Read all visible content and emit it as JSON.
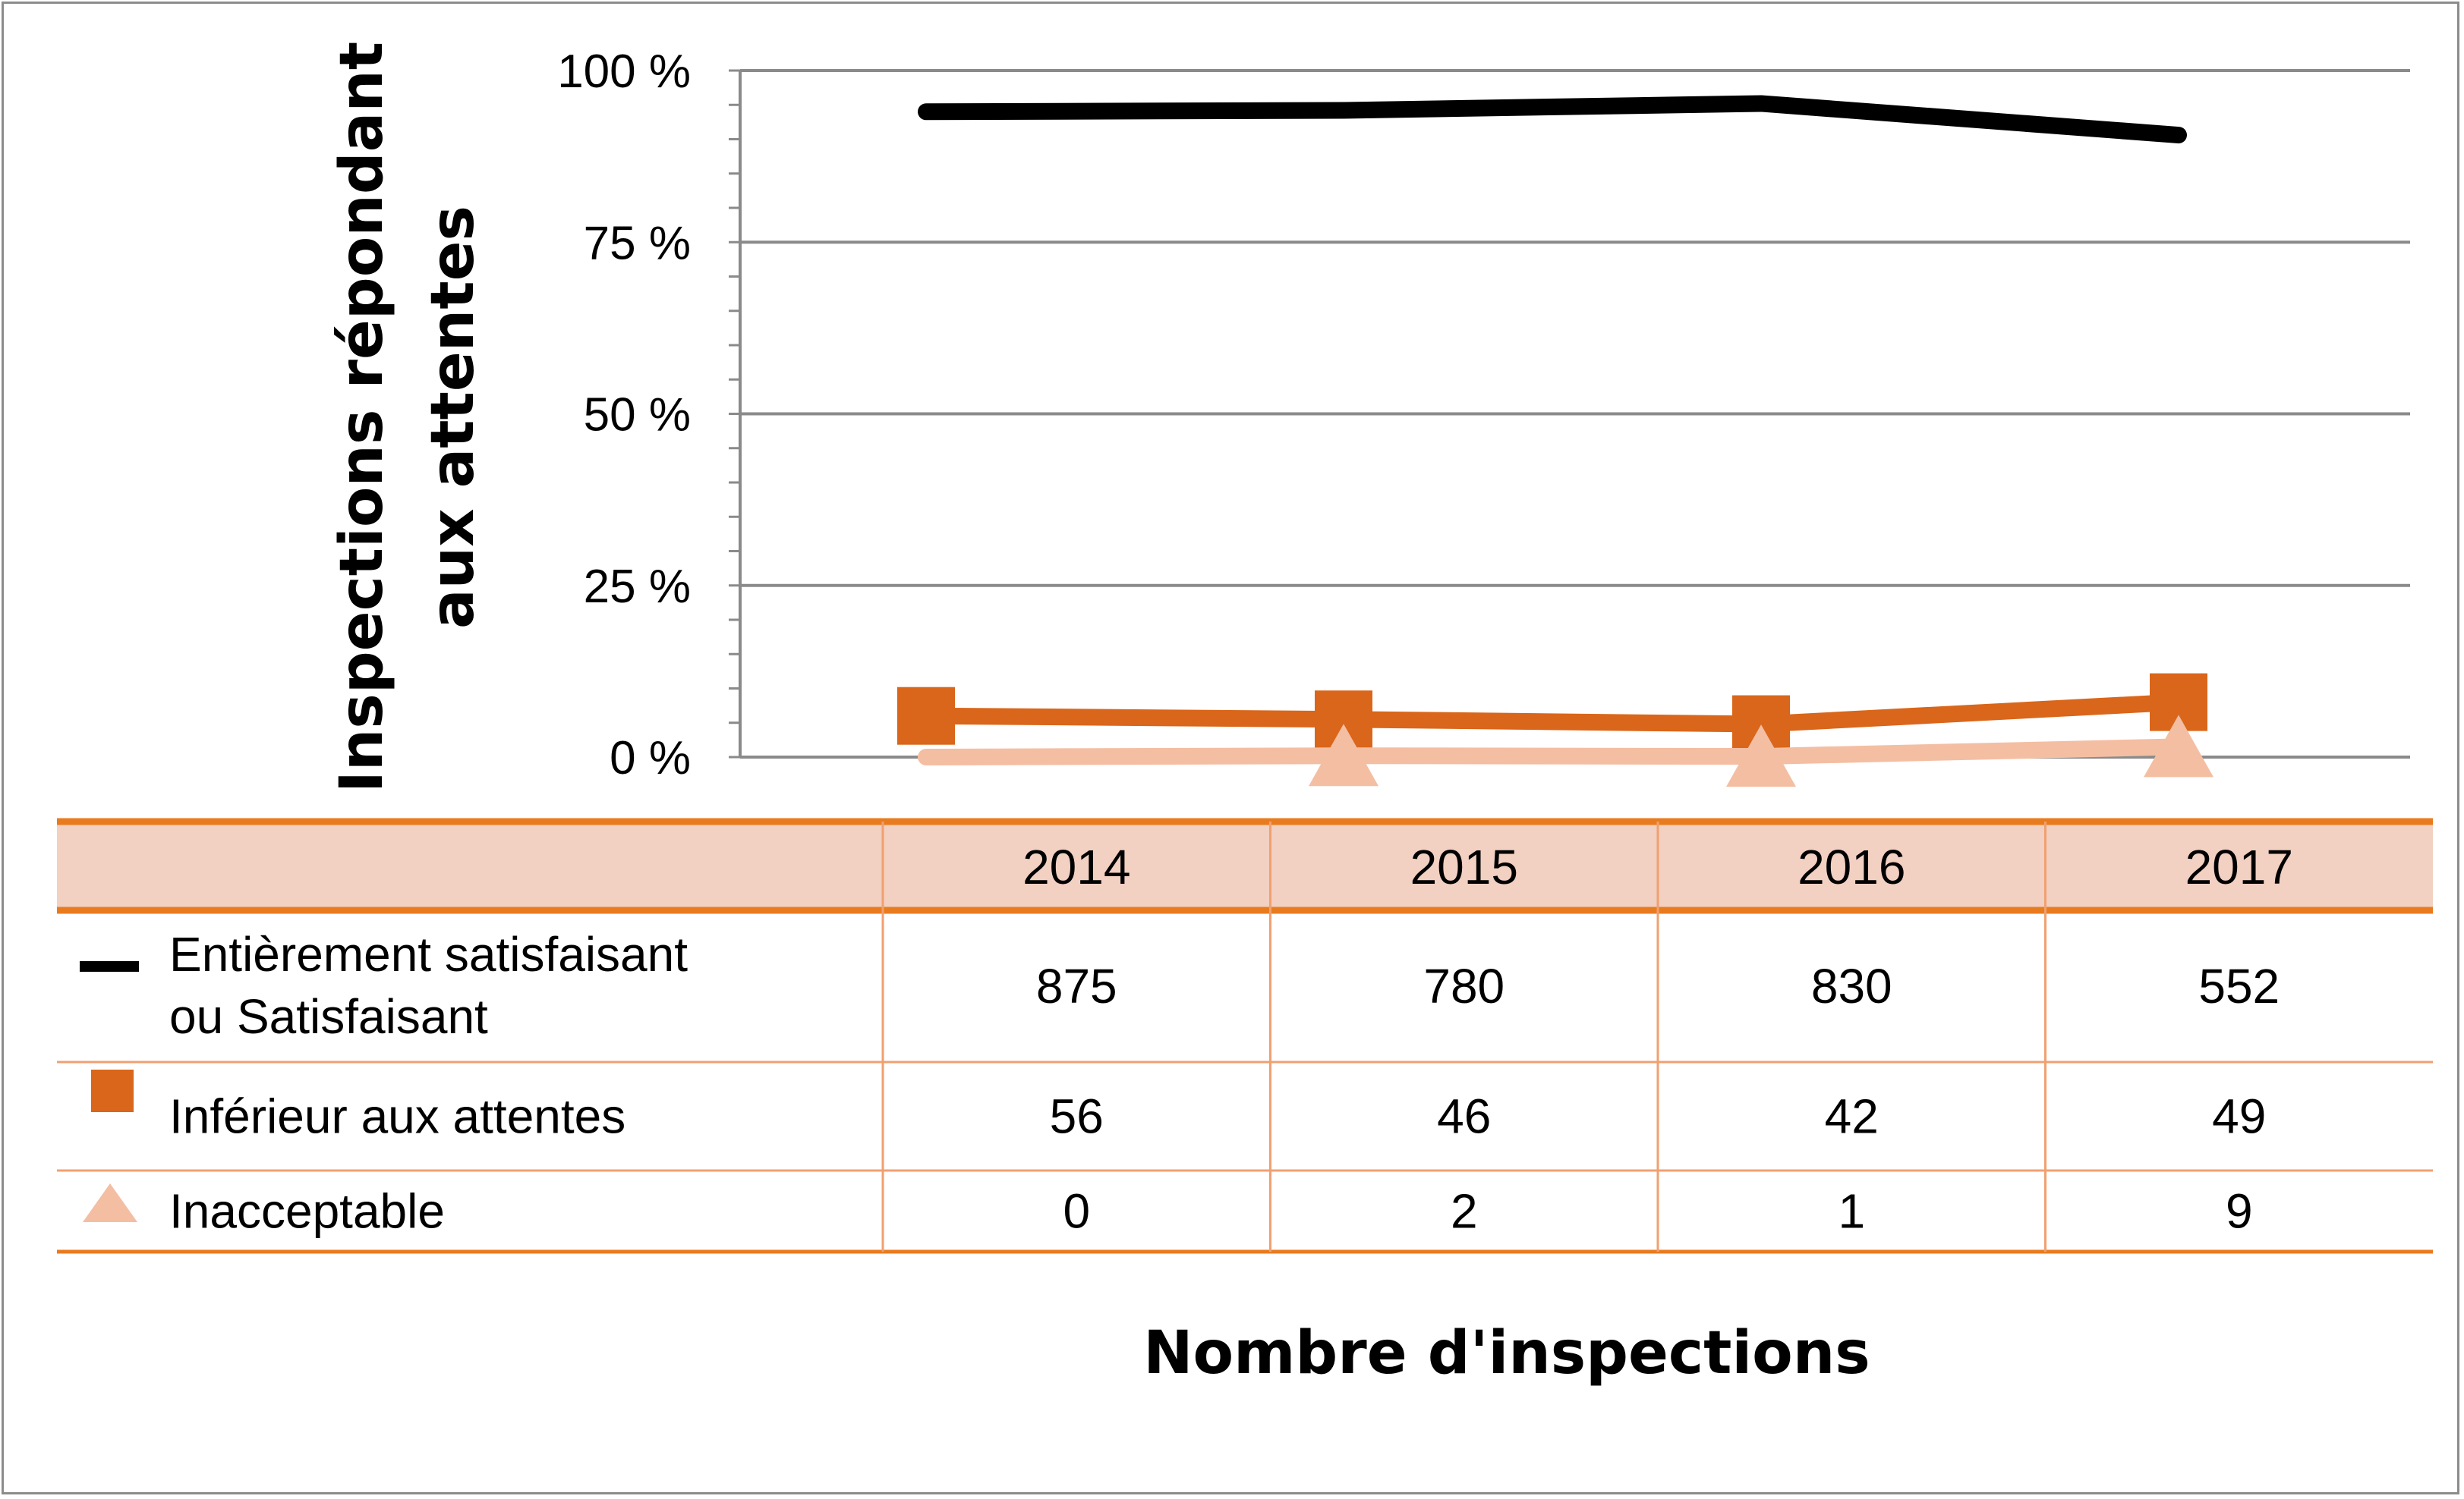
{
  "chart_data": {
    "type": "line",
    "ylabel_lines": [
      "Inspections répondant",
      "aux attentes"
    ],
    "xlabel": "Nombre d'inspections",
    "ylim": [
      0,
      100
    ],
    "y_ticks": [
      "0 %",
      "25 %",
      "50 %",
      "75 %",
      "100 %"
    ],
    "categories": [
      "2014",
      "2015",
      "2016",
      "2017"
    ],
    "series": [
      {
        "name": "Entièrement satisfaisant ou Satisfaisant",
        "name_lines": [
          "Entièrement satisfaisant",
          "ou Satisfaisant"
        ],
        "color": "#000000",
        "marker": "line",
        "values": [
          94.0,
          94.2,
          95.2,
          90.6
        ],
        "counts": [
          "875",
          "780",
          "830",
          "552"
        ]
      },
      {
        "name": "Inférieur aux attentes",
        "name_lines": [
          "Inférieur aux attentes"
        ],
        "color": "#d9661a",
        "marker": "square",
        "values": [
          6.0,
          5.5,
          4.8,
          8.0
        ],
        "counts": [
          "56",
          "46",
          "42",
          "49"
        ]
      },
      {
        "name": "Inacceptable",
        "name_lines": [
          "Inacceptable"
        ],
        "color": "#f4bea3",
        "marker": "triangle",
        "values": [
          0.0,
          0.2,
          0.1,
          1.5
        ],
        "counts": [
          "0",
          "2",
          "1",
          "9"
        ]
      }
    ],
    "grid": true,
    "legend_placement": "table-below"
  }
}
